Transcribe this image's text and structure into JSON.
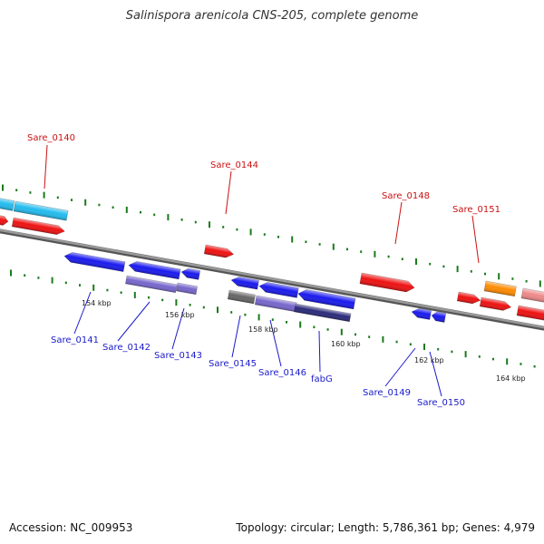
{
  "title": "Salinispora arenicola CNS-205, complete genome",
  "footer": {
    "accession": "Accession: NC_009953",
    "summary": "Topology: circular; Length: 5,786,361 bp; Genes: 4,979"
  },
  "colors": {
    "forward_label": "#cc1111",
    "reverse_label": "#1a1acc",
    "backbone": "#808080",
    "ticks": "#1a7a1a",
    "forward_gene": "#ee1111",
    "reverse_gene": "#1a1aee",
    "cyan_gene": "#22bbee",
    "lavender_gene": "#7766cc",
    "orange_gene": "#ff8a00",
    "pink_gene": "#ee8888",
    "gray_gene": "#666666"
  },
  "scale_labels": [
    "154 kbp",
    "156 kbp",
    "158 kbp",
    "160 kbp",
    "162 kbp",
    "164 kbp"
  ],
  "forward_labels": [
    "Sare_0140",
    "Sare_0144",
    "Sare_0148",
    "Sare_0151"
  ],
  "reverse_labels": [
    "Sare_0141",
    "Sare_0142",
    "Sare_0143",
    "Sare_0145",
    "Sare_0146",
    "fabG",
    "Sare_0149",
    "Sare_0150"
  ]
}
